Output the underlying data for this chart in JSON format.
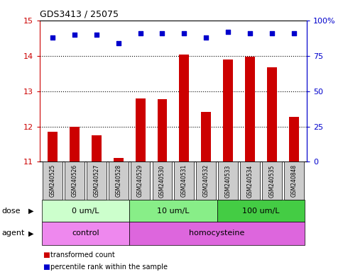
{
  "title": "GDS3413 / 25075",
  "samples": [
    "GSM240525",
    "GSM240526",
    "GSM240527",
    "GSM240528",
    "GSM240529",
    "GSM240530",
    "GSM240531",
    "GSM240532",
    "GSM240533",
    "GSM240534",
    "GSM240535",
    "GSM240848"
  ],
  "bar_values": [
    11.85,
    12.0,
    11.75,
    11.1,
    12.8,
    12.78,
    14.03,
    12.42,
    13.9,
    13.97,
    13.67,
    12.27
  ],
  "percentile_values": [
    88,
    90,
    90,
    84,
    91,
    91,
    91,
    88,
    92,
    91,
    91,
    91
  ],
  "ylim_left": [
    11,
    15
  ],
  "ylim_right": [
    0,
    100
  ],
  "yticks_left": [
    11,
    12,
    13,
    14,
    15
  ],
  "yticks_right": [
    0,
    25,
    50,
    75,
    100
  ],
  "bar_color": "#cc0000",
  "dot_color": "#0000cc",
  "dose_groups": [
    {
      "label": "0 um/L",
      "start": 0,
      "end": 4,
      "color": "#ccffcc"
    },
    {
      "label": "10 um/L",
      "start": 4,
      "end": 8,
      "color": "#88ee88"
    },
    {
      "label": "100 um/L",
      "start": 8,
      "end": 12,
      "color": "#44cc44"
    }
  ],
  "agent_groups": [
    {
      "label": "control",
      "start": 0,
      "end": 4,
      "color": "#ee88ee"
    },
    {
      "label": "homocysteine",
      "start": 4,
      "end": 12,
      "color": "#dd66dd"
    }
  ],
  "dose_label": "dose",
  "agent_label": "agent",
  "legend_bar_label": "transformed count",
  "legend_dot_label": "percentile rank within the sample",
  "left_axis_color": "#cc0000",
  "right_axis_color": "#0000cc",
  "tick_label_bg": "#cccccc"
}
